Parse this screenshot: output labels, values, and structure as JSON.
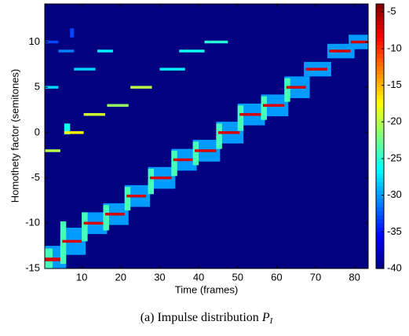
{
  "chart_data": {
    "type": "heatmap",
    "xlabel": "Time (frames)",
    "ylabel": "Homothety  factor (semitones)",
    "caption": "(a) Impulse distribution ",
    "caption_symbol": "P",
    "caption_subscript": "I",
    "xlim": [
      0.5,
      83.5
    ],
    "xticks": [
      10,
      20,
      30,
      40,
      50,
      60,
      70,
      80
    ],
    "ylim": [
      -15,
      14.2
    ],
    "yticks": [
      -15,
      -10,
      -5,
      0,
      5,
      10
    ],
    "clim": [
      -40,
      -3.9
    ],
    "cticks": [
      -40,
      -35,
      -30,
      -25,
      -20,
      -15,
      -10,
      -5
    ],
    "colormap": "jet",
    "cells": [
      {
        "x": [
          0.5,
          6
        ],
        "y": [
          -15,
          -12.5
        ],
        "value": -30
      },
      {
        "x": [
          0.5,
          2.5
        ],
        "y": [
          -15,
          -12.8
        ],
        "value": -24
      },
      {
        "x": [
          0.5,
          4.5
        ],
        "y": [
          -14.2,
          -13.8
        ],
        "value": -7
      },
      {
        "x": [
          4.5,
          11
        ],
        "y": [
          -13.5,
          -10.5
        ],
        "value": -30
      },
      {
        "x": [
          4.5,
          6
        ],
        "y": [
          -14.5,
          -9.8
        ],
        "value": -24
      },
      {
        "x": [
          5,
          10
        ],
        "y": [
          -12.15,
          -11.85
        ],
        "value": -7
      },
      {
        "x": [
          10,
          16.5
        ],
        "y": [
          -11.2,
          -8.8
        ],
        "value": -30
      },
      {
        "x": [
          10,
          11.5
        ],
        "y": [
          -12,
          -8.8
        ],
        "value": -24
      },
      {
        "x": [
          10.5,
          15.5
        ],
        "y": [
          -10.15,
          -9.85
        ],
        "value": -7
      },
      {
        "x": [
          15.5,
          22
        ],
        "y": [
          -10.2,
          -7.8
        ],
        "value": -30
      },
      {
        "x": [
          15.5,
          17
        ],
        "y": [
          -10.8,
          -8
        ],
        "value": -24
      },
      {
        "x": [
          16,
          21
        ],
        "y": [
          -9.15,
          -8.85
        ],
        "value": -7
      },
      {
        "x": [
          21,
          27.5
        ],
        "y": [
          -8.2,
          -5.8
        ],
        "value": -30
      },
      {
        "x": [
          21,
          22.5
        ],
        "y": [
          -8.6,
          -6
        ],
        "value": -24
      },
      {
        "x": [
          21.5,
          26.5
        ],
        "y": [
          -7.15,
          -6.85
        ],
        "value": -7
      },
      {
        "x": [
          27,
          34
        ],
        "y": [
          -6.2,
          -3.8
        ],
        "value": -30
      },
      {
        "x": [
          27,
          28.5
        ],
        "y": [
          -6.8,
          -4
        ],
        "value": -24
      },
      {
        "x": [
          27.5,
          33
        ],
        "y": [
          -5.15,
          -4.85
        ],
        "value": -7
      },
      {
        "x": [
          33,
          39.5
        ],
        "y": [
          -4.2,
          -1.8
        ],
        "value": -30
      },
      {
        "x": [
          33,
          34.5
        ],
        "y": [
          -4.8,
          -2
        ],
        "value": -24
      },
      {
        "x": [
          33.5,
          38.5
        ],
        "y": [
          -3.15,
          -2.85
        ],
        "value": -7
      },
      {
        "x": [
          38.5,
          45.5
        ],
        "y": [
          -3.2,
          -0.8
        ],
        "value": -30
      },
      {
        "x": [
          38.5,
          40
        ],
        "y": [
          -3.6,
          -1
        ],
        "value": -24
      },
      {
        "x": [
          39,
          44.5
        ],
        "y": [
          -2.15,
          -1.85
        ],
        "value": -7
      },
      {
        "x": [
          44.5,
          51.5
        ],
        "y": [
          -1.2,
          1.2
        ],
        "value": -30
      },
      {
        "x": [
          44.5,
          46
        ],
        "y": [
          -1.8,
          1
        ],
        "value": -24
      },
      {
        "x": [
          45,
          50.5
        ],
        "y": [
          -0.15,
          0.15
        ],
        "value": -7
      },
      {
        "x": [
          50,
          57
        ],
        "y": [
          0.8,
          3.2
        ],
        "value": -30
      },
      {
        "x": [
          50,
          51.5
        ],
        "y": [
          0.2,
          3
        ],
        "value": -24
      },
      {
        "x": [
          50.5,
          56
        ],
        "y": [
          1.85,
          2.15
        ],
        "value": -7
      },
      {
        "x": [
          56,
          63
        ],
        "y": [
          1.8,
          4.2
        ],
        "value": -30
      },
      {
        "x": [
          56,
          57.5
        ],
        "y": [
          1.4,
          4
        ],
        "value": -24
      },
      {
        "x": [
          56.5,
          62
        ],
        "y": [
          2.85,
          3.15
        ],
        "value": -7
      },
      {
        "x": [
          62,
          68.5
        ],
        "y": [
          3.8,
          6.2
        ],
        "value": -30
      },
      {
        "x": [
          62,
          63.5
        ],
        "y": [
          3.4,
          6
        ],
        "value": -24
      },
      {
        "x": [
          62.5,
          67.5
        ],
        "y": [
          4.85,
          5.15
        ],
        "value": -7
      },
      {
        "x": [
          67,
          74
        ],
        "y": [
          6.2,
          7.8
        ],
        "value": -30
      },
      {
        "x": [
          67.5,
          73
        ],
        "y": [
          6.85,
          7.15
        ],
        "value": -7
      },
      {
        "x": [
          73,
          80
        ],
        "y": [
          8.2,
          9.8
        ],
        "value": -30
      },
      {
        "x": [
          73.5,
          79
        ],
        "y": [
          8.85,
          9.15
        ],
        "value": -7
      },
      {
        "x": [
          78.5,
          83.5
        ],
        "y": [
          9.2,
          10.8
        ],
        "value": -30
      },
      {
        "x": [
          79,
          83.5
        ],
        "y": [
          9.85,
          10.15
        ],
        "value": -7
      },
      {
        "x": [
          0.5,
          4.5
        ],
        "y": [
          -2.15,
          -1.85
        ],
        "value": -20
      },
      {
        "x": [
          5.5,
          7
        ],
        "y": [
          -0.2,
          1
        ],
        "value": -26
      },
      {
        "x": [
          5.5,
          10.5
        ],
        "y": [
          -0.15,
          0.15
        ],
        "value": -17
      },
      {
        "x": [
          10.5,
          16
        ],
        "y": [
          1.85,
          2.15
        ],
        "value": -19
      },
      {
        "x": [
          16.5,
          22
        ],
        "y": [
          2.85,
          3.15
        ],
        "value": -21
      },
      {
        "x": [
          22.5,
          28
        ],
        "y": [
          4.85,
          5.15
        ],
        "value": -20
      },
      {
        "x": [
          0.5,
          4
        ],
        "y": [
          4.85,
          5.15
        ],
        "value": -28
      },
      {
        "x": [
          8,
          13.5
        ],
        "y": [
          6.85,
          7.15
        ],
        "value": -28
      },
      {
        "x": [
          4,
          8
        ],
        "y": [
          8.85,
          9.15
        ],
        "value": -31
      },
      {
        "x": [
          14,
          18
        ],
        "y": [
          8.85,
          9.15
        ],
        "value": -27
      },
      {
        "x": [
          30,
          36.5
        ],
        "y": [
          6.85,
          7.15
        ],
        "value": -27
      },
      {
        "x": [
          35,
          41.5
        ],
        "y": [
          8.85,
          9.15
        ],
        "value": -26
      },
      {
        "x": [
          41.5,
          47.5
        ],
        "y": [
          9.85,
          10.15
        ],
        "value": -25
      },
      {
        "x": [
          0.5,
          4
        ],
        "y": [
          9.85,
          10.15
        ],
        "value": -33
      },
      {
        "x": [
          7,
          8
        ],
        "y": [
          10.5,
          11.5
        ],
        "value": -33
      }
    ]
  }
}
